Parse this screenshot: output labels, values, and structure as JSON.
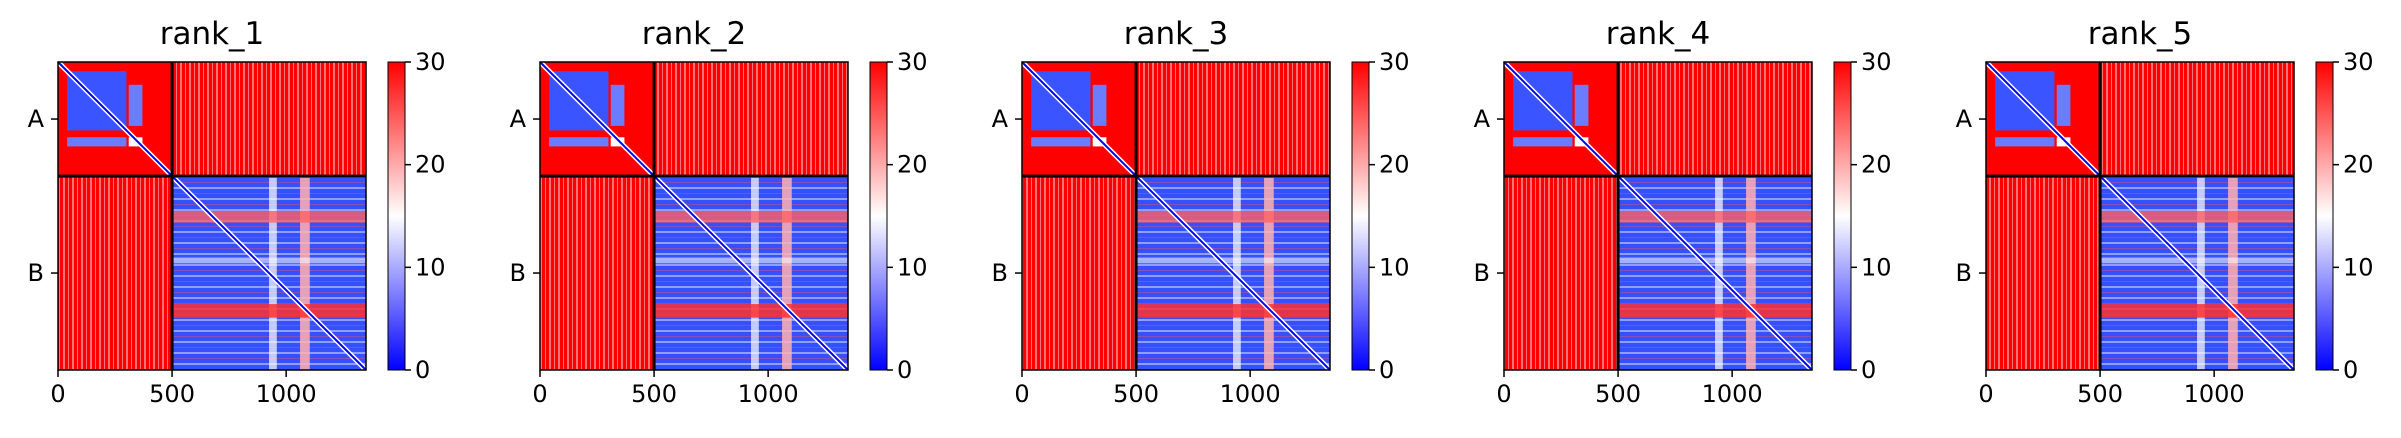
{
  "chart_data": [
    {
      "type": "heatmap",
      "title": "rank_1",
      "xticks": [
        0,
        500,
        1000
      ],
      "ylabels": [
        "A",
        "B"
      ],
      "boundary": 500,
      "n": 1350,
      "colorbar": {
        "ticks": [
          0,
          10,
          20,
          30
        ],
        "vmin": 0,
        "vmax": 30,
        "cmap": "bwr"
      }
    },
    {
      "type": "heatmap",
      "title": "rank_2",
      "xticks": [
        0,
        500,
        1000
      ],
      "ylabels": [
        "A",
        "B"
      ],
      "boundary": 500,
      "n": 1350,
      "colorbar": {
        "ticks": [
          0,
          10,
          20,
          30
        ],
        "vmin": 0,
        "vmax": 30,
        "cmap": "bwr"
      }
    },
    {
      "type": "heatmap",
      "title": "rank_3",
      "xticks": [
        0,
        500,
        1000
      ],
      "ylabels": [
        "A",
        "B"
      ],
      "boundary": 500,
      "n": 1350,
      "colorbar": {
        "ticks": [
          0,
          10,
          20,
          30
        ],
        "vmin": 0,
        "vmax": 30,
        "cmap": "bwr"
      }
    },
    {
      "type": "heatmap",
      "title": "rank_4",
      "xticks": [
        0,
        500,
        1000
      ],
      "ylabels": [
        "A",
        "B"
      ],
      "boundary": 500,
      "n": 1350,
      "colorbar": {
        "ticks": [
          0,
          10,
          20,
          30
        ],
        "vmin": 0,
        "vmax": 30,
        "cmap": "bwr"
      }
    },
    {
      "type": "heatmap",
      "title": "rank_5",
      "xticks": [
        0,
        500,
        1000
      ],
      "ylabels": [
        "A",
        "B"
      ],
      "boundary": 500,
      "n": 1350,
      "colorbar": {
        "ticks": [
          0,
          10,
          20,
          30
        ],
        "vmin": 0,
        "vmax": 30,
        "cmap": "bwr"
      }
    }
  ],
  "colors": {
    "low": "#0000ff",
    "mid": "#ffffff",
    "high": "#ff0000",
    "divider": "#000000"
  }
}
